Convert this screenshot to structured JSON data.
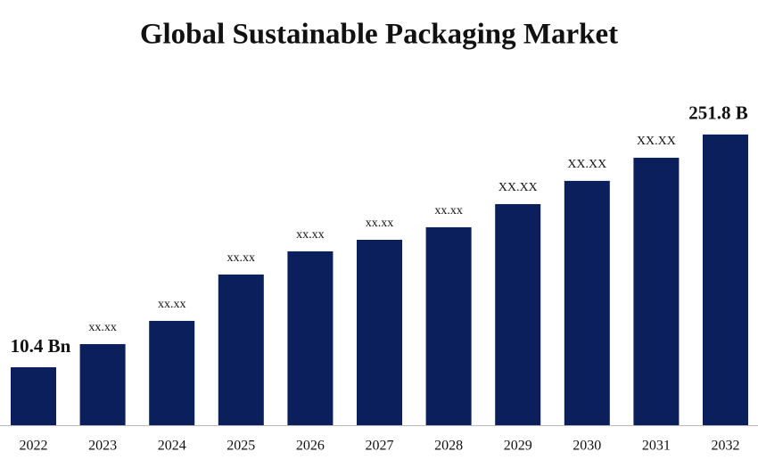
{
  "chart_data": {
    "type": "bar",
    "title": "Global Sustainable Packaging Market",
    "categories": [
      "2022",
      "2023",
      "2024",
      "2025",
      "2026",
      "2027",
      "2028",
      "2029",
      "2030",
      "2031",
      "2032"
    ],
    "values": [
      10.4,
      34.4,
      58.5,
      106.6,
      130.6,
      142.6,
      155.6,
      179.6,
      203.7,
      227.7,
      251.8
    ],
    "value_labels": [
      "10.4 Bn",
      "xx.xx",
      "xx.xx",
      "xx.xx",
      "xx.xx",
      "xx.xx",
      "xx.xx",
      "XX.XX",
      "XX.XX",
      "XX.XX",
      "251.8 B"
    ],
    "color": "#0b1f5c",
    "ylim": [
      -49.7,
      260
    ]
  }
}
